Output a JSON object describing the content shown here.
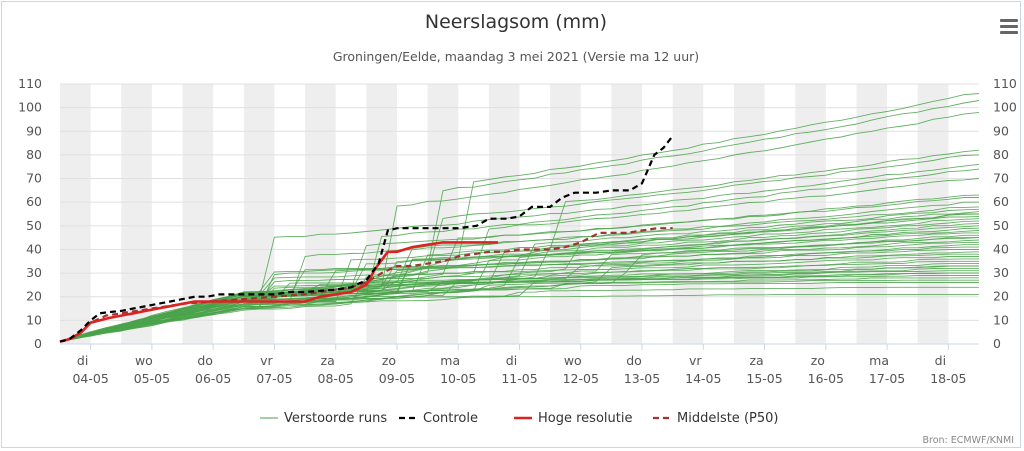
{
  "chart_data": {
    "type": "line",
    "title": "Neerslagsom (mm)",
    "subtitle": "Groningen/Eelde, maandag 3 mei 2021 (Versie ma 12 uur)",
    "xlabel": "",
    "ylabel": "",
    "ylim": [
      0,
      110
    ],
    "yticks": [
      0,
      10,
      20,
      30,
      40,
      50,
      60,
      70,
      80,
      90,
      100,
      110
    ],
    "x_tick_labels": [
      {
        "day": "di",
        "date": "04-05"
      },
      {
        "day": "wo",
        "date": "05-05"
      },
      {
        "day": "do",
        "date": "06-05"
      },
      {
        "day": "vr",
        "date": "07-05"
      },
      {
        "day": "za",
        "date": "08-05"
      },
      {
        "day": "zo",
        "date": "09-05"
      },
      {
        "day": "ma",
        "date": "10-05"
      },
      {
        "day": "di",
        "date": "11-05"
      },
      {
        "day": "wo",
        "date": "12-05"
      },
      {
        "day": "do",
        "date": "13-05"
      },
      {
        "day": "vr",
        "date": "14-05"
      },
      {
        "day": "za",
        "date": "15-05"
      },
      {
        "day": "zo",
        "date": "16-05"
      },
      {
        "day": "ma",
        "date": "17-05"
      },
      {
        "day": "di",
        "date": "18-05"
      }
    ],
    "grid": true,
    "legend_position": "bottom",
    "series": [
      {
        "name": "Verstoorde runs",
        "style": "thin-solid",
        "color": "#4aa34a",
        "count": 50,
        "final_values": [
          106,
          103,
          98,
          82,
          80,
          76,
          74,
          70,
          63,
          62,
          60,
          58,
          57,
          56,
          55,
          55,
          54,
          53,
          52,
          51,
          50,
          49,
          48,
          47,
          46,
          45,
          45,
          44,
          43,
          42,
          41,
          40,
          39,
          38,
          37,
          36,
          35,
          34,
          33,
          33,
          32,
          31,
          30,
          30,
          29,
          28,
          27,
          26,
          24,
          21
        ]
      },
      {
        "name": "Controle",
        "style": "dashed",
        "color": "#000000",
        "points": [
          [
            0,
            1
          ],
          [
            0.3,
            2
          ],
          [
            0.7,
            6
          ],
          [
            1.0,
            10
          ],
          [
            1.3,
            13
          ],
          [
            1.6,
            13.5
          ],
          [
            2.0,
            14
          ],
          [
            2.4,
            15
          ],
          [
            2.8,
            16
          ],
          [
            3.2,
            17
          ],
          [
            3.6,
            18
          ],
          [
            4.0,
            19
          ],
          [
            4.4,
            20
          ],
          [
            4.8,
            20
          ],
          [
            5.2,
            21
          ],
          [
            5.6,
            21
          ],
          [
            6.0,
            21
          ],
          [
            6.5,
            21
          ],
          [
            7.0,
            21
          ],
          [
            7.5,
            22
          ],
          [
            8.0,
            22
          ],
          [
            8.5,
            22.5
          ],
          [
            9.0,
            23
          ],
          [
            9.5,
            24
          ],
          [
            10.0,
            27
          ],
          [
            10.4,
            34
          ],
          [
            10.7,
            48
          ],
          [
            11.0,
            49
          ],
          [
            12.0,
            49
          ],
          [
            13.0,
            49
          ],
          [
            13.6,
            50
          ],
          [
            14.0,
            53
          ],
          [
            14.6,
            53
          ],
          [
            15.0,
            54
          ],
          [
            15.4,
            58
          ],
          [
            16.0,
            58
          ],
          [
            16.4,
            62
          ],
          [
            16.8,
            64
          ],
          [
            17.5,
            64
          ],
          [
            18.0,
            65
          ],
          [
            18.6,
            65
          ],
          [
            19.0,
            68
          ],
          [
            19.4,
            80
          ],
          [
            19.7,
            83
          ],
          [
            20.0,
            88
          ]
        ]
      },
      {
        "name": "Hoge resolutie",
        "style": "thick-solid",
        "color": "#dd2222",
        "points": [
          [
            0,
            1
          ],
          [
            0.3,
            2
          ],
          [
            0.7,
            5
          ],
          [
            1.0,
            9
          ],
          [
            1.3,
            10
          ],
          [
            1.6,
            11
          ],
          [
            2.0,
            12
          ],
          [
            2.4,
            13
          ],
          [
            2.8,
            14
          ],
          [
            3.2,
            15
          ],
          [
            3.6,
            16
          ],
          [
            4.0,
            17
          ],
          [
            4.4,
            18
          ],
          [
            4.8,
            18
          ],
          [
            5.2,
            18
          ],
          [
            5.6,
            18
          ],
          [
            6.0,
            18
          ],
          [
            6.5,
            18
          ],
          [
            7.0,
            18
          ],
          [
            7.5,
            18
          ],
          [
            8.0,
            18
          ],
          [
            8.5,
            20
          ],
          [
            9.0,
            21
          ],
          [
            9.5,
            22
          ],
          [
            10.0,
            25
          ],
          [
            10.3,
            32
          ],
          [
            10.7,
            39
          ],
          [
            11.0,
            39
          ],
          [
            11.5,
            41
          ],
          [
            12.0,
            42
          ],
          [
            12.5,
            43
          ],
          [
            13.0,
            43
          ],
          [
            13.5,
            43
          ],
          [
            14.0,
            43
          ],
          [
            14.3,
            43
          ]
        ]
      },
      {
        "name": "Middelste (P50)",
        "style": "dashed",
        "color": "#a33333",
        "points": [
          [
            0,
            1
          ],
          [
            0.5,
            3
          ],
          [
            1.0,
            9
          ],
          [
            1.5,
            12
          ],
          [
            2.0,
            13
          ],
          [
            2.5,
            14
          ],
          [
            3.0,
            15
          ],
          [
            3.5,
            16
          ],
          [
            4.0,
            17
          ],
          [
            4.5,
            17.5
          ],
          [
            5.0,
            18
          ],
          [
            5.5,
            18.5
          ],
          [
            6.0,
            19
          ],
          [
            6.5,
            19.5
          ],
          [
            7.0,
            20
          ],
          [
            7.5,
            20.5
          ],
          [
            8.0,
            21
          ],
          [
            8.5,
            22
          ],
          [
            9.0,
            23
          ],
          [
            9.5,
            24
          ],
          [
            10.0,
            26
          ],
          [
            10.5,
            30
          ],
          [
            11.0,
            33
          ],
          [
            11.5,
            33
          ],
          [
            12.0,
            34
          ],
          [
            12.5,
            35
          ],
          [
            13.0,
            37
          ],
          [
            13.5,
            38
          ],
          [
            14.0,
            39
          ],
          [
            14.5,
            39
          ],
          [
            15.0,
            40
          ],
          [
            15.5,
            40
          ],
          [
            16.0,
            40
          ],
          [
            16.5,
            41
          ],
          [
            17.0,
            43
          ],
          [
            17.3,
            45
          ],
          [
            17.6,
            47
          ],
          [
            18.0,
            47
          ],
          [
            18.5,
            47
          ],
          [
            19.0,
            48
          ],
          [
            19.5,
            49
          ],
          [
            20.0,
            49
          ]
        ]
      }
    ]
  },
  "credits": "Bron: ECMWF/KNMI",
  "menu": {
    "icon": "hamburger-menu-icon"
  }
}
